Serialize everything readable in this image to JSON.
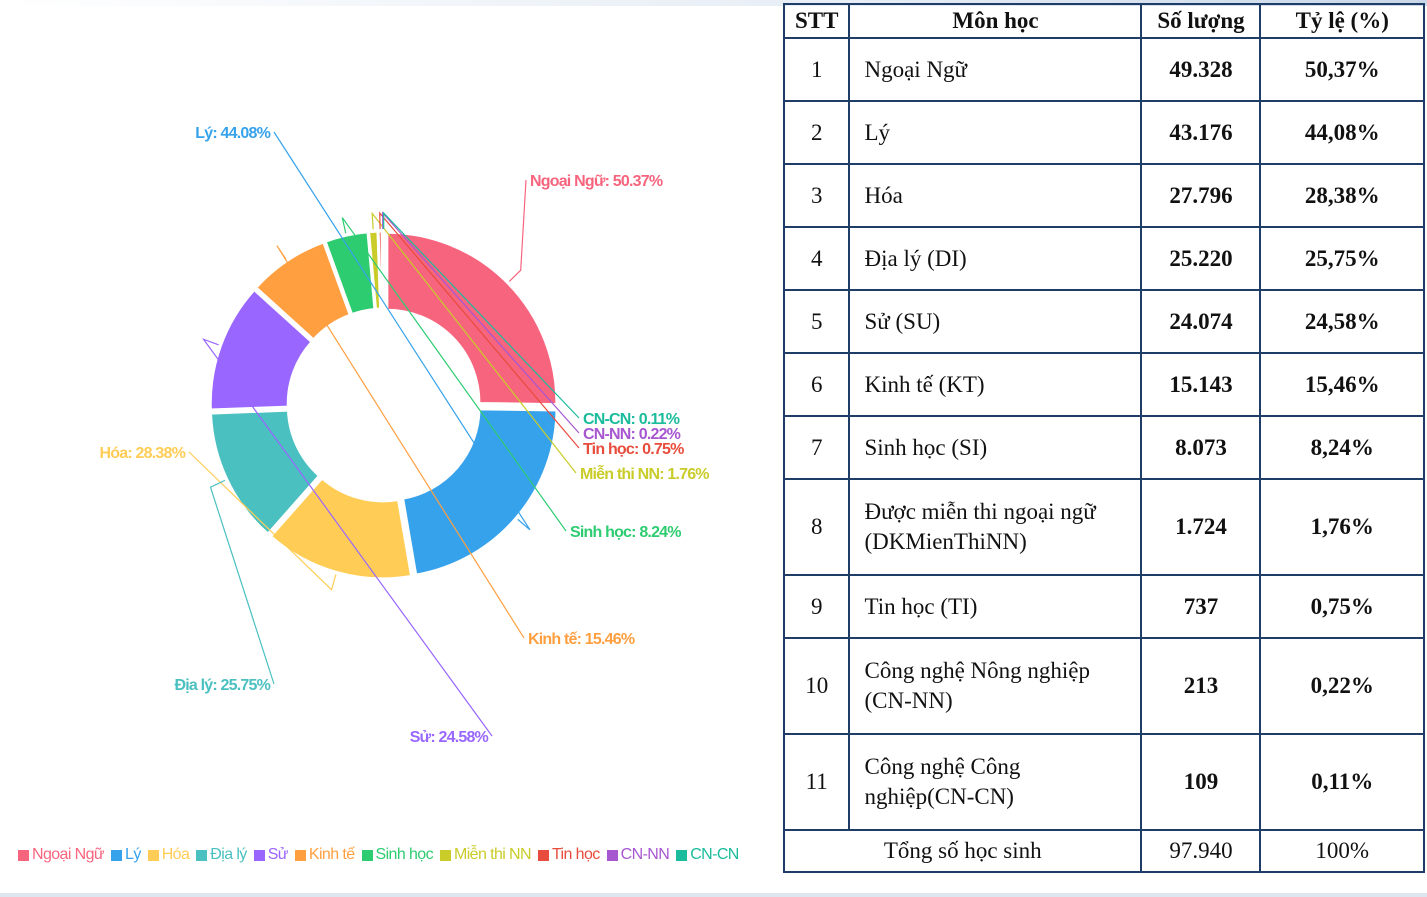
{
  "chart_data": {
    "type": "pie",
    "categories": [
      "Ngoại Ngữ",
      "Lý",
      "Hóa",
      "Địa lý",
      "Sử",
      "Kinh tế",
      "Sinh học",
      "Miễn thi NN",
      "Tin học",
      "CN-NN",
      "CN-CN"
    ],
    "values": [
      50.37,
      44.08,
      28.38,
      25.75,
      24.58,
      15.46,
      8.24,
      1.76,
      0.75,
      0.22,
      0.11
    ],
    "labels": [
      "Ngoại Ngữ: 50.37%",
      "Lý: 44.08%",
      "Hóa: 28.38%",
      "Địa lý: 25.75%",
      "Sử: 24.58%",
      "Kinh tế: 15.46%",
      "Sinh học: 8.24%",
      "Miễn thi NN: 1.76%",
      "Tin học: 0.75%",
      "CN-NN: 0.22%",
      "CN-CN: 0.11%"
    ],
    "colors": [
      "#f7647e",
      "#36a2eb",
      "#ffcd56",
      "#4bc0c0",
      "#9966ff",
      "#ff9f40",
      "#2ecc71",
      "#c9cc29",
      "#e74c3c",
      "#a757d0",
      "#1abc9c"
    ],
    "donut": true,
    "legend_position": "bottom"
  },
  "table": {
    "headers": [
      "STT",
      "Môn học",
      "Số lượng",
      "Tỷ lệ (%)"
    ],
    "rows": [
      {
        "stt": "1",
        "subject": "Ngoại Ngữ",
        "count": "49.328",
        "rate": "50,37%"
      },
      {
        "stt": "2",
        "subject": "Lý",
        "count": "43.176",
        "rate": "44,08%"
      },
      {
        "stt": "3",
        "subject": "Hóa",
        "count": "27.796",
        "rate": "28,38%"
      },
      {
        "stt": "4",
        "subject": "Địa lý (DI)",
        "count": "25.220",
        "rate": "25,75%"
      },
      {
        "stt": "5",
        "subject": "Sử (SU)",
        "count": "24.074",
        "rate": "24,58%"
      },
      {
        "stt": "6",
        "subject": "Kinh tế (KT)",
        "count": "15.143",
        "rate": "15,46%"
      },
      {
        "stt": "7",
        "subject": "Sinh học (SI)",
        "count": "8.073",
        "rate": "8,24%"
      },
      {
        "stt": "8",
        "subject": "Được miễn thi ngoại ngữ (DKMienThiNN)",
        "count": "1.724",
        "rate": "1,76%"
      },
      {
        "stt": "9",
        "subject": "Tin học (TI)",
        "count": "737",
        "rate": "0,75%"
      },
      {
        "stt": "10",
        "subject": "Công nghệ Nông nghiệp (CN-NN)",
        "count": "213",
        "rate": "0,22%"
      },
      {
        "stt": "11",
        "subject": "Công nghệ Công nghiệp(CN-CN)",
        "count": "109",
        "rate": "0,11%"
      }
    ],
    "total_label": "Tổng số học sinh",
    "total_count": "97.940",
    "total_rate": "100%"
  }
}
